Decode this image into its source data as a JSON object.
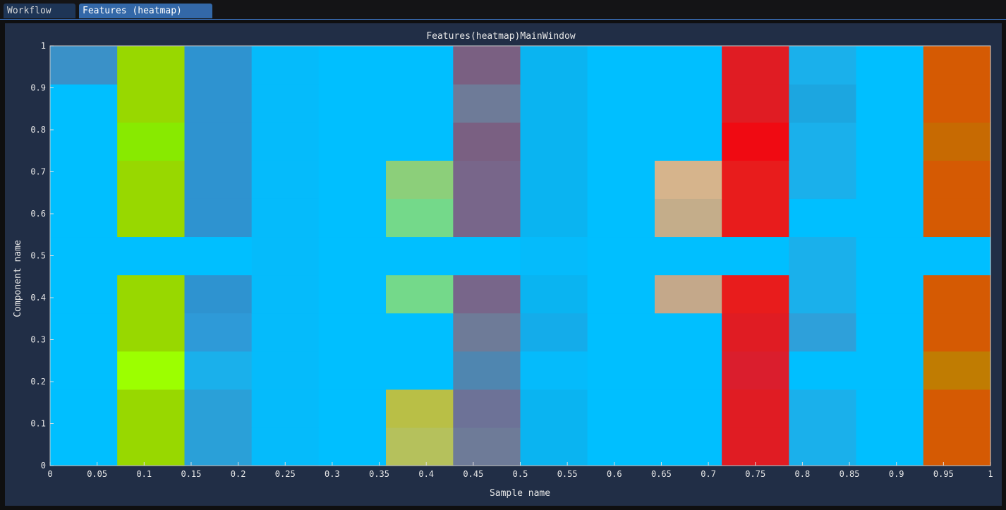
{
  "tabs": [
    {
      "label": "Workflow",
      "active": false
    },
    {
      "label": "Features (heatmap)",
      "active": true
    }
  ],
  "chart_data": {
    "type": "heatmap",
    "title": "Features(heatmap)MainWindow",
    "xlabel": "Sample name",
    "ylabel": "Component name",
    "xlim": [
      0,
      1
    ],
    "ylim": [
      0,
      1
    ],
    "x_ticks": [
      "0",
      "0.05",
      "0.1",
      "0.15",
      "0.2",
      "0.25",
      "0.3",
      "0.35",
      "0.4",
      "0.45",
      "0.5",
      "0.55",
      "0.6",
      "0.65",
      "0.7",
      "0.75",
      "0.8",
      "0.85",
      "0.9",
      "0.95",
      "1"
    ],
    "y_ticks": [
      "0",
      "0.1",
      "0.2",
      "0.3",
      "0.4",
      "0.5",
      "0.6",
      "0.7",
      "0.8",
      "0.9",
      "1"
    ],
    "column_edges": [
      0,
      0.0714,
      0.1429,
      0.2143,
      0.2857,
      0.3571,
      0.4286,
      0.5,
      0.5714,
      0.6429,
      0.7143,
      0.7857,
      0.8571,
      0.9286,
      1
    ],
    "row_edges": [
      0,
      0.0909,
      0.1818,
      0.2727,
      0.3636,
      0.4545,
      0.5455,
      0.6364,
      0.7273,
      0.8182,
      0.9091,
      1
    ],
    "colors": [
      [
        "#00bfff",
        "#98d800",
        "#2aa0d8",
        "#05bbfb",
        "#00bfff",
        "#b5c15c",
        "#6e7b98",
        "#0ab4f1",
        "#00bfff",
        "#00bfff",
        "#e01c23",
        "#1ab0eb",
        "#00bfff",
        "#d55a03"
      ],
      [
        "#00bfff",
        "#98d800",
        "#2aa0d8",
        "#05bbfb",
        "#00bfff",
        "#b9bf46",
        "#6d7297",
        "#0ab4f1",
        "#00bfff",
        "#00bfff",
        "#e01c23",
        "#1ab0eb",
        "#00bfff",
        "#d55a03"
      ],
      [
        "#00bfff",
        "#9cff00",
        "#1ab0eb",
        "#05bbfb",
        "#00bfff",
        "#00bfff",
        "#4f86b0",
        "#05bbfb",
        "#00bfff",
        "#00bfff",
        "#da1e2d",
        "#00bfff",
        "#00bfff",
        "#c07c02"
      ],
      [
        "#00bfff",
        "#98d800",
        "#2e9ad8",
        "#05bbfb",
        "#00bfff",
        "#00bfff",
        "#6e7b98",
        "#14acea",
        "#00bfff",
        "#00bfff",
        "#e01c23",
        "#2ea0da",
        "#00bfff",
        "#d55a03"
      ],
      [
        "#00bfff",
        "#98d800",
        "#2e93d0",
        "#05bbfb",
        "#00bfff",
        "#74d98a",
        "#78668a",
        "#0ab4f1",
        "#00bfff",
        "#c4a88a",
        "#e81c1c",
        "#1ab0eb",
        "#00bfff",
        "#d55a03"
      ],
      [
        "#00bfff",
        "#00bfff",
        "#00bfff",
        "#05bbfb",
        "#00bfff",
        "#00bfff",
        "#00bfff",
        "#05bbfb",
        "#00bfff",
        "#00bfff",
        "#00bfff",
        "#1ab0eb",
        "#00bfff",
        "#00bfff"
      ],
      [
        "#00bfff",
        "#98d800",
        "#2e93d0",
        "#05bbfb",
        "#00bfff",
        "#74d98a",
        "#78668a",
        "#0ab4f1",
        "#00bfff",
        "#c4ad8a",
        "#e81c1c",
        "#00bfff",
        "#00bfff",
        "#d55a03"
      ],
      [
        "#00bfff",
        "#98d800",
        "#2e93d0",
        "#05bbfb",
        "#00bfff",
        "#8ccf7a",
        "#78668a",
        "#0ab4f1",
        "#00bfff",
        "#d6b48c",
        "#e81c1c",
        "#1ab0eb",
        "#00bfff",
        "#d55a03"
      ],
      [
        "#00bfff",
        "#88ea00",
        "#2e93d0",
        "#05bbfb",
        "#00bfff",
        "#00bfff",
        "#7a6082",
        "#0ab4f1",
        "#00bfff",
        "#00bfff",
        "#f00a12",
        "#1ab0eb",
        "#00bfff",
        "#c76a02"
      ],
      [
        "#00bfff",
        "#98d800",
        "#2e93d0",
        "#05bbfb",
        "#00bfff",
        "#00bfff",
        "#6e7b98",
        "#0ab4f1",
        "#00bfff",
        "#00bfff",
        "#e01c23",
        "#1ca6e0",
        "#00bfff",
        "#d55a03"
      ],
      [
        "#3a91c8",
        "#98d800",
        "#2e93d0",
        "#05bbfb",
        "#00bfff",
        "#00bfff",
        "#7a6082",
        "#0ab4f1",
        "#00bfff",
        "#00bfff",
        "#e01c23",
        "#1ab0eb",
        "#00bfff",
        "#d55a03"
      ]
    ]
  }
}
